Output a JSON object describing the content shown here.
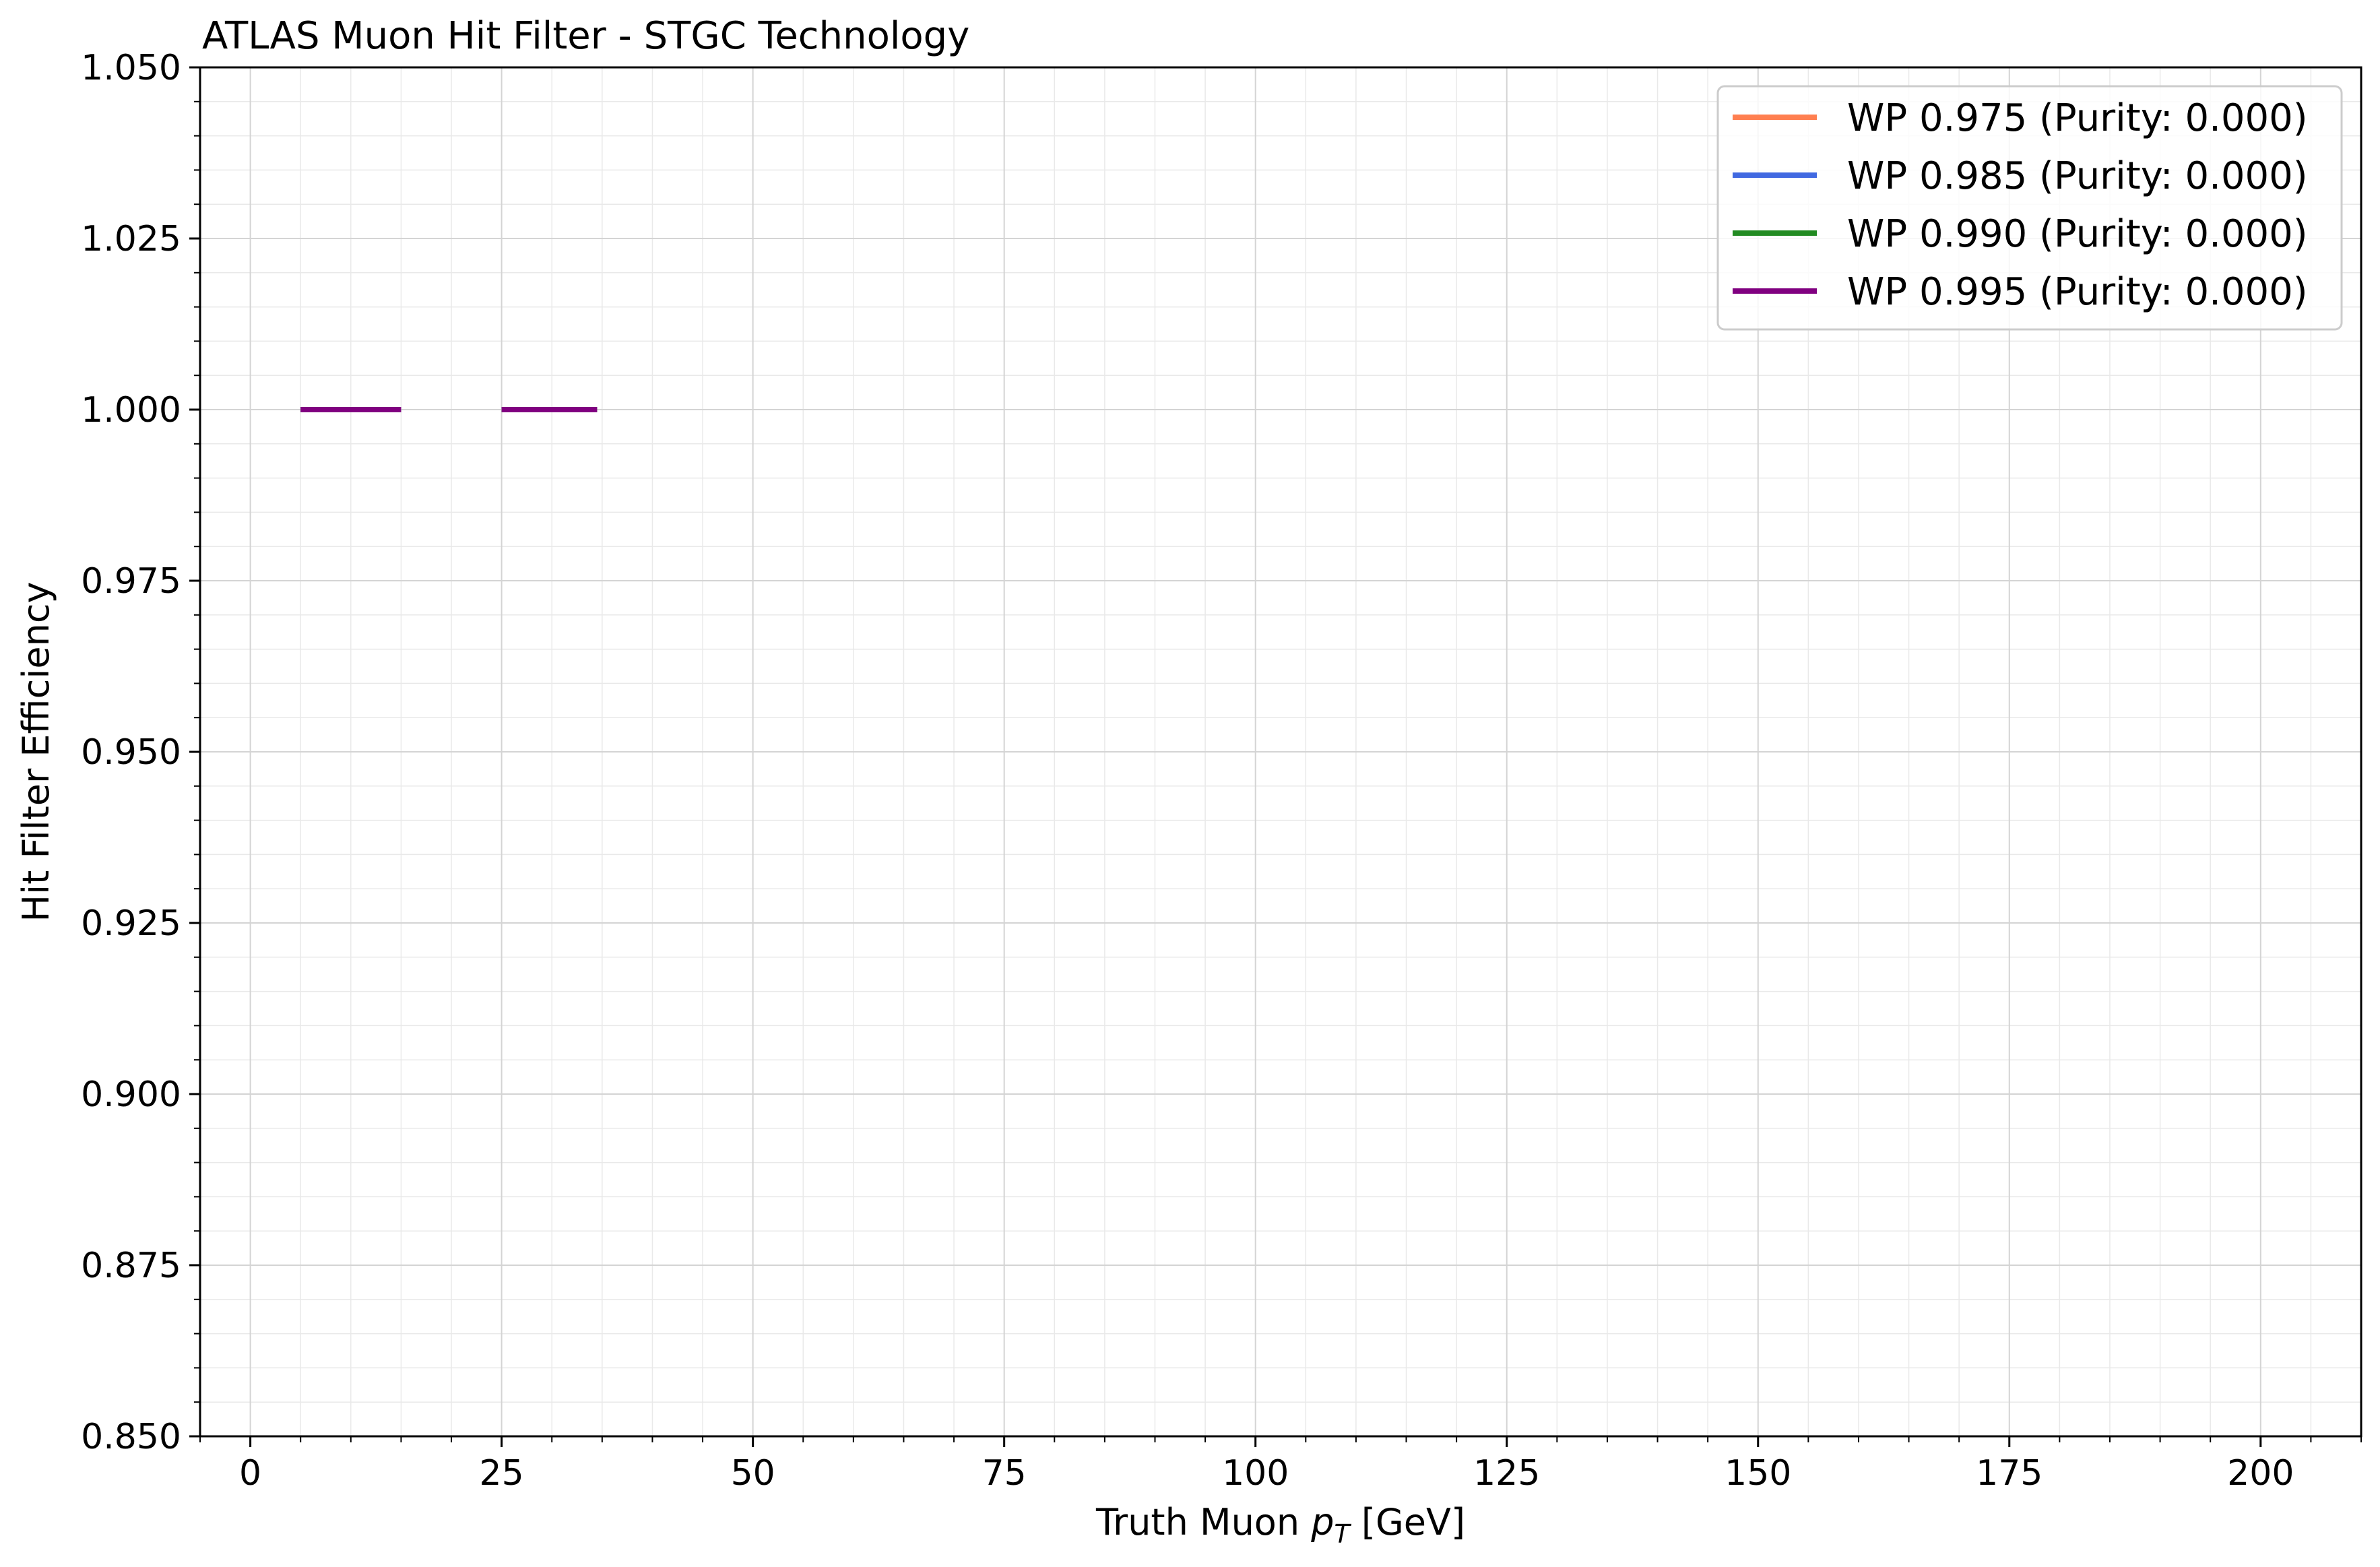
{
  "chart_data": {
    "type": "line",
    "title": "ATLAS Muon Hit Filter - STGC Technology",
    "xlabel": {
      "prefix": "Truth Muon ",
      "symbol": "p",
      "subscript": "T",
      "suffix": " [GeV]"
    },
    "ylabel": "Hit Filter Efficiency",
    "xlim": [
      -5,
      210
    ],
    "ylim": [
      0.85,
      1.05
    ],
    "x_ticks": [
      0,
      25,
      50,
      75,
      100,
      125,
      150,
      175,
      200
    ],
    "x_tick_labels": [
      "0",
      "25",
      "50",
      "75",
      "100",
      "125",
      "150",
      "175",
      "200"
    ],
    "y_ticks": [
      0.85,
      0.875,
      0.9,
      0.925,
      0.95,
      0.975,
      1.0,
      1.025,
      1.05
    ],
    "y_tick_labels": [
      "0.850",
      "0.875",
      "0.900",
      "0.925",
      "0.950",
      "0.975",
      "1.000",
      "1.025",
      "1.050"
    ],
    "x_minor_step": 5,
    "y_minor_step": 0.005,
    "grid": true,
    "legend_position": "top-right",
    "series": [
      {
        "name": "WP 0.975 (Purity: 0.000)",
        "color": "#FF7F50",
        "segments": [
          [
            5,
            15,
            1.0
          ],
          [
            25,
            34.5,
            1.0
          ]
        ]
      },
      {
        "name": "WP 0.985 (Purity: 0.000)",
        "color": "#4169E1",
        "segments": [
          [
            5,
            15,
            1.0
          ],
          [
            25,
            34.5,
            1.0
          ]
        ]
      },
      {
        "name": "WP 0.990 (Purity: 0.000)",
        "color": "#228B22",
        "segments": [
          [
            5,
            15,
            1.0
          ],
          [
            25,
            34.5,
            1.0
          ]
        ]
      },
      {
        "name": "WP 0.995 (Purity: 0.000)",
        "color": "#800080",
        "segments": [
          [
            5,
            15,
            1.0
          ],
          [
            25,
            34.5,
            1.0
          ]
        ]
      }
    ]
  }
}
